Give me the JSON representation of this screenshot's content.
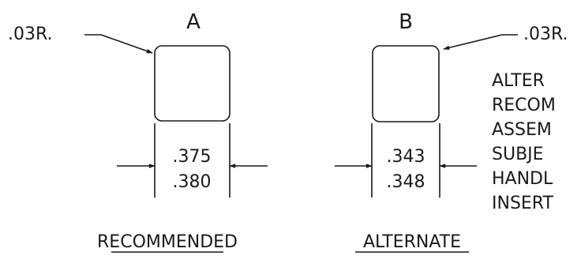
{
  "view_a": {
    "label": "A",
    "radius_callout": ".03R.",
    "dim_top": ".375",
    "dim_bottom": ".380",
    "caption": "RECOMMENDED"
  },
  "view_b": {
    "label": "B",
    "radius_callout": ".03R.",
    "dim_top": ".343",
    "dim_bottom": ".348",
    "caption": "ALTERNATE"
  },
  "note_lines": [
    "ALTER",
    "RECOM",
    "ASSEM",
    "SUBJE",
    "HANDL",
    "INSERT"
  ],
  "colors": {
    "ink": "#1a1a1a",
    "background": "#ffffff"
  }
}
